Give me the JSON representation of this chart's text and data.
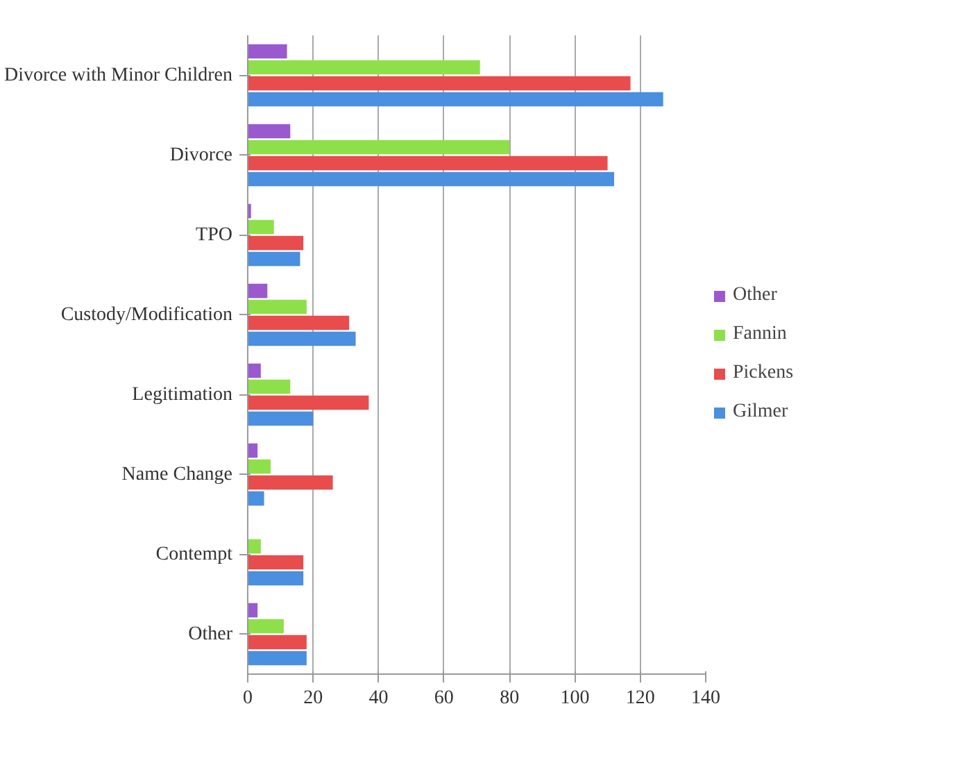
{
  "chart_data": {
    "type": "bar",
    "orientation": "horizontal",
    "categories": [
      "Divorce with Minor Children",
      "Divorce",
      "TPO",
      "Custody/Modification",
      "Legitimation",
      "Name Change",
      "Contempt",
      "Other"
    ],
    "series": [
      {
        "name": "Other",
        "color": "#9b59d0",
        "values": [
          12,
          13,
          1,
          6,
          4,
          3,
          0,
          3
        ]
      },
      {
        "name": "Fannin",
        "color": "#8ee04a",
        "values": [
          71,
          80,
          8,
          18,
          13,
          7,
          4,
          11
        ]
      },
      {
        "name": "Pickens",
        "color": "#e84c4c",
        "values": [
          117,
          110,
          17,
          31,
          37,
          26,
          17,
          18
        ]
      },
      {
        "name": "Gilmer",
        "color": "#4a8fe0",
        "values": [
          127,
          112,
          16,
          33,
          20,
          5,
          17,
          18
        ]
      }
    ],
    "xlim": [
      0,
      140
    ],
    "xticks": [
      0,
      20,
      40,
      60,
      80,
      100,
      120,
      140
    ],
    "grid": "x",
    "legend": "right"
  }
}
